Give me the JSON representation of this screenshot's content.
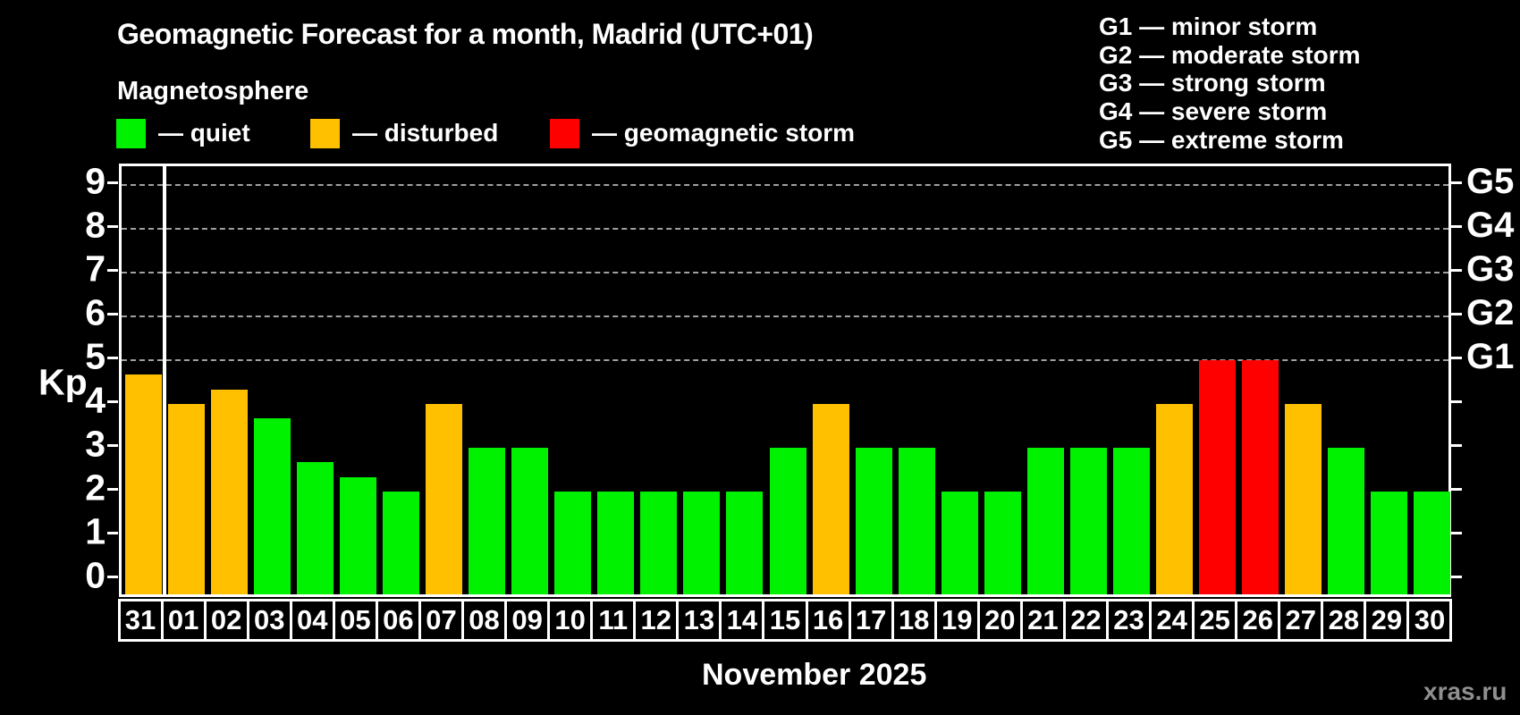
{
  "title": "Geomagnetic Forecast for a month, Madrid (UTC+01)",
  "subtitle": "Magnetosphere",
  "legend": {
    "items": [
      {
        "name": "quiet",
        "label": "— quiet",
        "color": "#00f200"
      },
      {
        "name": "disturbed",
        "label": "— disturbed",
        "color": "#ffc000"
      },
      {
        "name": "storm",
        "label": "— geomagnetic storm",
        "color": "#ff0000"
      }
    ]
  },
  "storm_scale": {
    "items": [
      "G1 — minor storm",
      "G2 — moderate storm",
      "G3 — strong storm",
      "G4 — severe storm",
      "G5 — extreme storm"
    ]
  },
  "axis": {
    "y_label": "Kp",
    "y_ticks": [
      0,
      1,
      2,
      3,
      4,
      5,
      6,
      7,
      8,
      9
    ],
    "gridline_levels": [
      5,
      6,
      7,
      8,
      9
    ],
    "right_axis_labels": [
      {
        "kp": 5,
        "label": "G1"
      },
      {
        "kp": 6,
        "label": "G2"
      },
      {
        "kp": 7,
        "label": "G3"
      },
      {
        "kp": 8,
        "label": "G4"
      },
      {
        "kp": 9,
        "label": "G5"
      }
    ]
  },
  "x_axis_title": "November 2025",
  "watermark": "xras.ru",
  "chart_data": {
    "type": "bar",
    "title": "Geomagnetic Forecast for a month, Madrid (UTC+01)",
    "ylabel": "Kp",
    "ylim": [
      0,
      9
    ],
    "grid": "dashed horizontal at Kp 5-9",
    "legend_position": "top",
    "categories": [
      "31",
      "01",
      "02",
      "03",
      "04",
      "05",
      "06",
      "07",
      "08",
      "09",
      "10",
      "11",
      "12",
      "13",
      "14",
      "15",
      "16",
      "17",
      "18",
      "19",
      "20",
      "21",
      "22",
      "23",
      "24",
      "25",
      "26",
      "27",
      "28",
      "29",
      "30"
    ],
    "values": [
      4.67,
      4.0,
      4.33,
      3.67,
      2.67,
      2.33,
      2.0,
      4.0,
      3.0,
      3.0,
      2.0,
      2.0,
      2.0,
      2.0,
      2.0,
      3.0,
      4.0,
      3.0,
      3.0,
      2.0,
      2.0,
      3.0,
      3.0,
      3.0,
      4.0,
      5.0,
      5.0,
      4.0,
      3.0,
      2.0,
      2.0
    ],
    "statuses": [
      "disturbed",
      "disturbed",
      "disturbed",
      "quiet",
      "quiet",
      "quiet",
      "quiet",
      "disturbed",
      "quiet",
      "quiet",
      "quiet",
      "quiet",
      "quiet",
      "quiet",
      "quiet",
      "quiet",
      "disturbed",
      "quiet",
      "quiet",
      "quiet",
      "quiet",
      "quiet",
      "quiet",
      "quiet",
      "disturbed",
      "storm",
      "storm",
      "disturbed",
      "quiet",
      "quiet",
      "quiet"
    ],
    "colors": {
      "quiet": "#00f200",
      "disturbed": "#ffc000",
      "storm": "#ff0000"
    },
    "thresholds": {
      "disturbed_min_kp": 4,
      "storm_min_kp": 5
    },
    "separator_after_index": 0
  }
}
